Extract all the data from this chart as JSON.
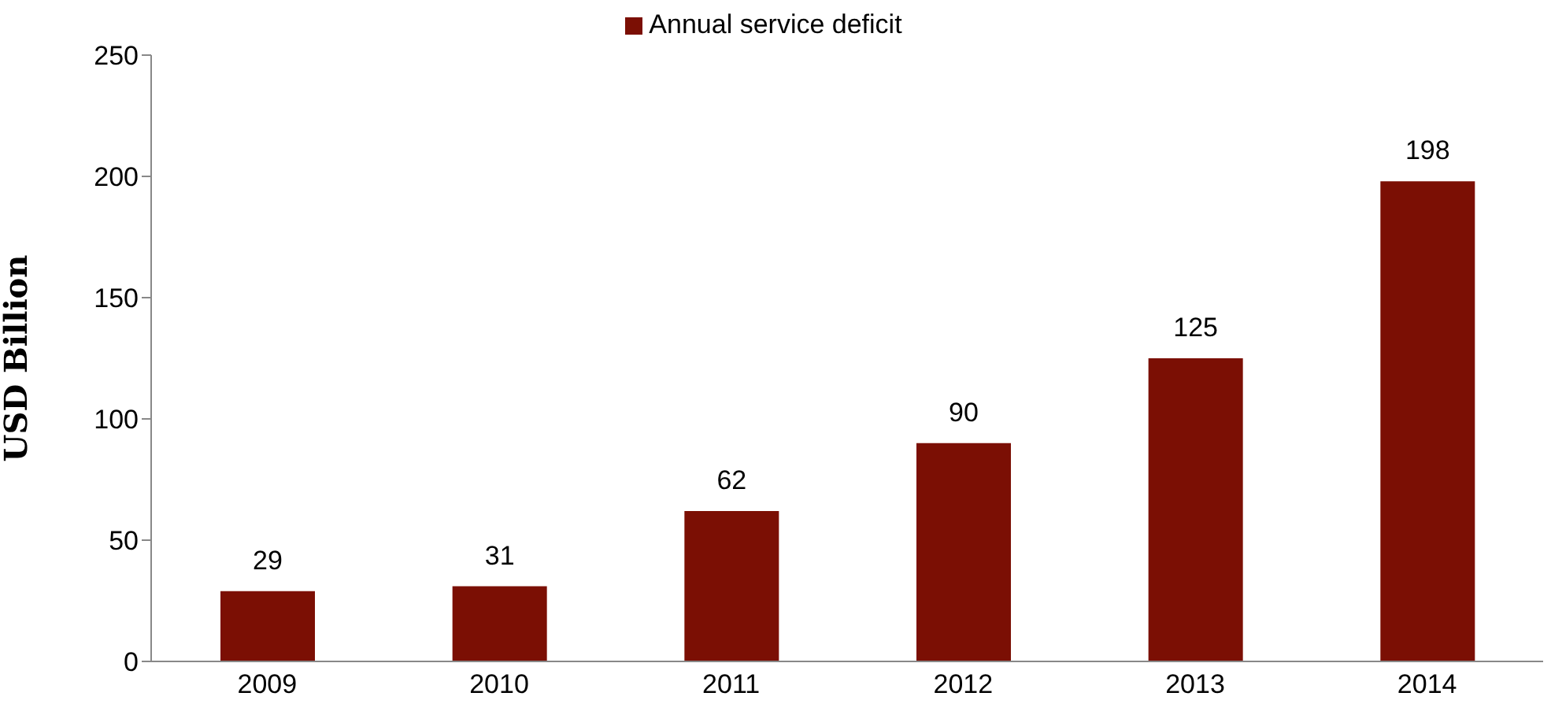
{
  "chart_data": {
    "type": "bar",
    "ylabel": "USD Billion",
    "categories": [
      "2009",
      "2010",
      "2011",
      "2012",
      "2013",
      "2014"
    ],
    "series": [
      {
        "name": "Annual service deficit",
        "color": "#7b0f04",
        "values": [
          29,
          31,
          62,
          90,
          125,
          198
        ]
      }
    ],
    "ylim": [
      0,
      250
    ],
    "yticks": [
      0,
      50,
      100,
      150,
      200,
      250
    ],
    "grid": false,
    "legend": "top",
    "data_labels": true
  }
}
